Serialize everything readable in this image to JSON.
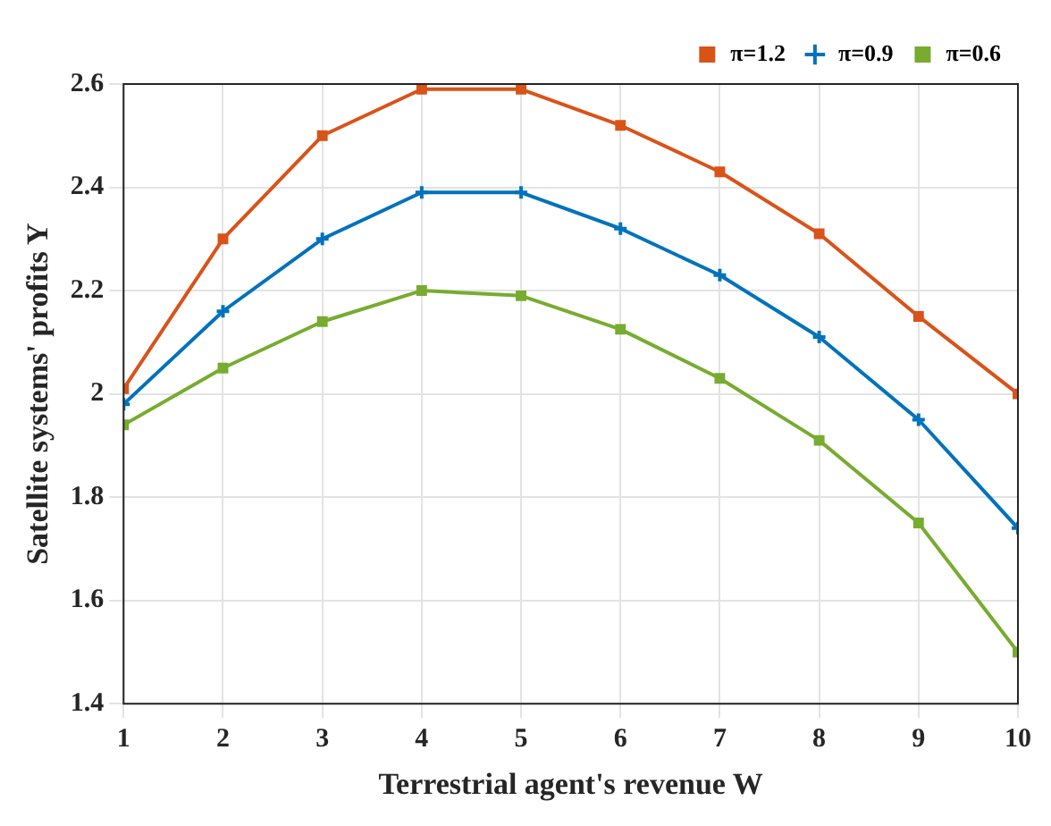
{
  "chart_data": {
    "type": "line",
    "xlabel": "Terrestrial agent's revenue W",
    "ylabel": "Satellite systems' profits Y",
    "x": [
      1,
      2,
      3,
      4,
      5,
      6,
      7,
      8,
      9,
      10
    ],
    "series": [
      {
        "name": "π=1.2",
        "color": "#d95319",
        "marker": "square",
        "values": [
          2.01,
          2.3,
          2.5,
          2.59,
          2.59,
          2.52,
          2.43,
          2.31,
          2.15,
          2.0
        ]
      },
      {
        "name": "π=0.9",
        "color": "#0072bd",
        "marker": "cross",
        "values": [
          1.98,
          2.16,
          2.3,
          2.39,
          2.39,
          2.32,
          2.23,
          2.11,
          1.95,
          1.74
        ]
      },
      {
        "name": "π=0.6",
        "color": "#77ac30",
        "marker": "square",
        "values": [
          1.94,
          2.05,
          2.14,
          2.2,
          2.19,
          2.125,
          2.03,
          1.91,
          1.75,
          1.5
        ]
      }
    ],
    "xlim": [
      1,
      10
    ],
    "xticks": [
      1,
      2,
      3,
      4,
      5,
      6,
      7,
      8,
      9,
      10
    ],
    "ylim": [
      1.4,
      2.6
    ],
    "yticks": [
      1.4,
      1.6,
      1.8,
      2,
      2.2,
      2.4,
      2.6
    ],
    "grid": true,
    "legend": "top right",
    "line_style": "solid"
  }
}
